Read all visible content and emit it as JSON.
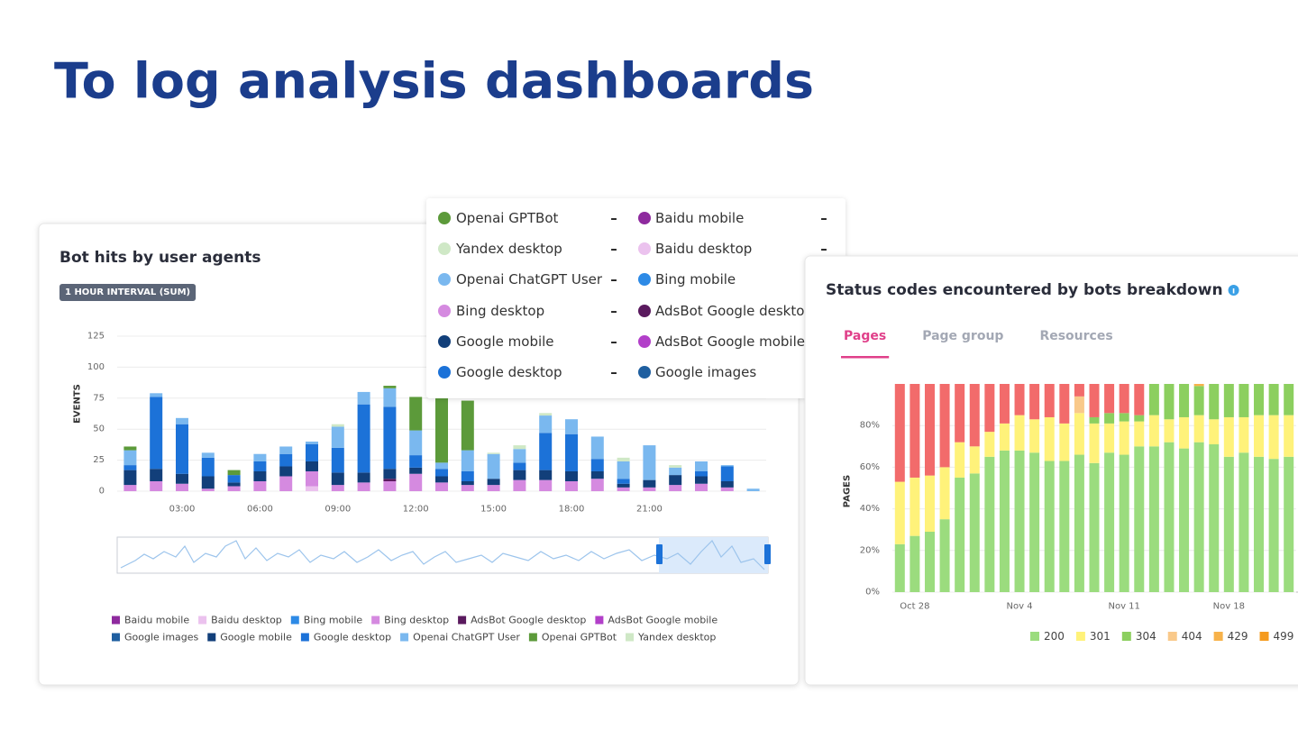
{
  "page_title": "To log analysis dashboards",
  "chart_data": [
    {
      "type": "bar",
      "stacked": true,
      "title": "Bot hits by user agents",
      "badge": "1 HOUR INTERVAL (SUM)",
      "y_label": "EVENTS",
      "categories": [
        null,
        null,
        "03:00",
        null,
        null,
        "06:00",
        null,
        null,
        "09:00",
        null,
        null,
        "12:00",
        null,
        null,
        "15:00",
        null,
        null,
        "18:00",
        null,
        null,
        "21:00",
        null,
        null,
        null,
        null
      ],
      "ylim": [
        0,
        125
      ],
      "yticks": [
        0,
        25,
        50,
        75,
        100,
        125
      ],
      "grid": true,
      "series": [
        {
          "name": "Baidu mobile",
          "color": "#8e2a9e",
          "values": [
            0,
            0,
            0,
            0,
            0,
            0,
            0,
            0,
            0,
            0,
            0,
            0,
            0,
            0,
            0,
            0,
            0,
            0,
            0,
            0,
            0,
            0,
            0,
            0,
            0
          ]
        },
        {
          "name": "Baidu desktop",
          "color": "#ebc2ee",
          "values": [
            0,
            0,
            0,
            0,
            0,
            0,
            0,
            4,
            0,
            0,
            0,
            0,
            0,
            0,
            0,
            0,
            0,
            0,
            0,
            0,
            0,
            0,
            0,
            0,
            0
          ]
        },
        {
          "name": "Bing mobile",
          "color": "#2d8ae6",
          "values": [
            0,
            0,
            0,
            0,
            0,
            0,
            0,
            0,
            0,
            0,
            0,
            0,
            0,
            0,
            0,
            0,
            0,
            0,
            0,
            0,
            0,
            0,
            0,
            0,
            0
          ]
        },
        {
          "name": "Bing desktop",
          "color": "#d58ae0",
          "values": [
            5,
            8,
            6,
            2,
            4,
            8,
            12,
            12,
            5,
            7,
            8,
            14,
            7,
            5,
            5,
            9,
            9,
            8,
            10,
            3,
            3,
            5,
            6,
            3,
            0
          ]
        },
        {
          "name": "AdsBot Google desktop",
          "color": "#5a1a5e",
          "values": [
            0,
            0,
            0,
            0,
            0,
            0,
            0,
            0,
            0,
            0,
            2,
            0,
            0,
            0,
            0,
            0,
            0,
            0,
            0,
            0,
            0,
            0,
            0,
            0,
            0
          ]
        },
        {
          "name": "AdsBot Google mobile",
          "color": "#b23fc9",
          "values": [
            0,
            0,
            0,
            0,
            0,
            0,
            0,
            0,
            0,
            0,
            0,
            0,
            0,
            0,
            0,
            0,
            0,
            0,
            0,
            0,
            0,
            0,
            0,
            0,
            0
          ]
        },
        {
          "name": "Google images",
          "color": "#1f5fa0",
          "values": [
            0,
            0,
            0,
            0,
            0,
            0,
            0,
            0,
            0,
            0,
            0,
            0,
            0,
            0,
            0,
            0,
            0,
            0,
            0,
            0,
            0,
            0,
            0,
            0,
            0
          ]
        },
        {
          "name": "Google mobile",
          "color": "#123f7a",
          "values": [
            12,
            10,
            8,
            10,
            3,
            8,
            8,
            8,
            10,
            8,
            8,
            5,
            5,
            3,
            5,
            8,
            8,
            8,
            6,
            3,
            6,
            8,
            6,
            5,
            0
          ]
        },
        {
          "name": "Google desktop",
          "color": "#1c72d8",
          "values": [
            4,
            58,
            40,
            15,
            6,
            8,
            10,
            14,
            20,
            55,
            50,
            10,
            6,
            8,
            0,
            6,
            30,
            30,
            10,
            4,
            0,
            0,
            4,
            12,
            0
          ]
        },
        {
          "name": "Openai ChatGPT User",
          "color": "#7ab8ef",
          "values": [
            12,
            3,
            5,
            4,
            0,
            6,
            6,
            2,
            17,
            10,
            15,
            20,
            5,
            17,
            20,
            11,
            14,
            12,
            18,
            14,
            28,
            6,
            8,
            1,
            2
          ]
        },
        {
          "name": "Openai GPTBot",
          "color": "#5c9a3a",
          "values": [
            3,
            0,
            0,
            0,
            4,
            0,
            0,
            0,
            0,
            0,
            2,
            27,
            55,
            40,
            0,
            0,
            0,
            0,
            0,
            0,
            0,
            0,
            0,
            0,
            0
          ]
        },
        {
          "name": "Yandex desktop",
          "color": "#cfe8c6",
          "values": [
            0,
            0,
            0,
            0,
            0,
            0,
            0,
            0,
            2,
            0,
            0,
            0,
            0,
            0,
            1,
            3,
            2,
            0,
            0,
            3,
            0,
            2,
            0,
            0,
            0
          ]
        }
      ]
    },
    {
      "type": "bar",
      "stacked": true,
      "title": "Status codes encountered by bots breakdown",
      "tabs": [
        "Pages",
        "Page group",
        "Resources"
      ],
      "active_tab": 0,
      "y_label": "PAGES",
      "categories": [
        null,
        "Oct 28",
        null,
        null,
        null,
        null,
        null,
        null,
        "Nov 4",
        null,
        null,
        null,
        null,
        null,
        null,
        "Nov 11",
        null,
        null,
        null,
        null,
        null,
        null,
        "Nov 18",
        null,
        null,
        null,
        null
      ],
      "ylim": [
        0,
        100
      ],
      "yticks": [
        {
          "value": 0,
          "label": "0%"
        },
        {
          "value": 20,
          "label": "20%"
        },
        {
          "value": 40,
          "label": "40%"
        },
        {
          "value": 60,
          "label": "60%"
        },
        {
          "value": 80,
          "label": "80%"
        }
      ],
      "grid": true,
      "series": [
        {
          "name": "200",
          "color": "#9bdc7e",
          "values": [
            23,
            27,
            29,
            35,
            55,
            57,
            65,
            68,
            68,
            67,
            63,
            63,
            66,
            62,
            67,
            66,
            70,
            70,
            72,
            69,
            72,
            71,
            65,
            67,
            65,
            64,
            65
          ]
        },
        {
          "name": "301",
          "color": "#fff27a",
          "values": [
            30,
            28,
            27,
            25,
            17,
            13,
            12,
            13,
            17,
            16,
            21,
            18,
            20,
            19,
            14,
            16,
            12,
            15,
            11,
            15,
            13,
            12,
            19,
            17,
            20,
            21,
            20
          ]
        },
        {
          "name": "304",
          "color": "#8ccf5f",
          "values": [
            0,
            0,
            0,
            0,
            0,
            0,
            0,
            0,
            0,
            0,
            0,
            0,
            0,
            3,
            5,
            4,
            3,
            15,
            17,
            16,
            14,
            17,
            16,
            16,
            15,
            15,
            15
          ]
        },
        {
          "name": "404",
          "color": "#f9c98a",
          "values": [
            0,
            0,
            0,
            0,
            0,
            0,
            0,
            0,
            0,
            0,
            0,
            0,
            8,
            0,
            0,
            0,
            0,
            0,
            0,
            0,
            0,
            0,
            0,
            0,
            0,
            0,
            0
          ]
        },
        {
          "name": "429",
          "color": "#f7b24a",
          "values": [
            0,
            0,
            0,
            0,
            0,
            0,
            0,
            0,
            0,
            0,
            0,
            0,
            0,
            0,
            0,
            0,
            0,
            0,
            0,
            0,
            1,
            0,
            0,
            0,
            0,
            0,
            0
          ]
        },
        {
          "name": "499",
          "color": "#f59b1f",
          "values": [
            0,
            0,
            0,
            0,
            0,
            0,
            0,
            0,
            0,
            0,
            0,
            0,
            0,
            0,
            0,
            0,
            0,
            0,
            0,
            0,
            0,
            0,
            0,
            0,
            0,
            0,
            0
          ]
        },
        {
          "color": "#f26b6b",
          "values": [
            47,
            45,
            44,
            40,
            28,
            30,
            23,
            19,
            15,
            17,
            16,
            19,
            6,
            16,
            14,
            14,
            15,
            0,
            0,
            0,
            0,
            0,
            0,
            0,
            0,
            0,
            0
          ]
        }
      ]
    }
  ],
  "tooltip": {
    "columns": [
      [
        {
          "name": "Openai GPTBot",
          "color": "#5c9a3a",
          "value": "–"
        },
        {
          "name": "Yandex desktop",
          "color": "#cfe8c6",
          "value": "–"
        },
        {
          "name": "Openai ChatGPT User",
          "color": "#7ab8ef",
          "value": "–"
        },
        {
          "name": "Bing desktop",
          "color": "#d58ae0",
          "value": "–"
        },
        {
          "name": "Google mobile",
          "color": "#123f7a",
          "value": "–"
        },
        {
          "name": "Google desktop",
          "color": "#1c72d8",
          "value": "–"
        }
      ],
      [
        {
          "name": "Baidu mobile",
          "color": "#8e2a9e",
          "value": "–"
        },
        {
          "name": "Baidu desktop",
          "color": "#ebc2ee",
          "value": "–"
        },
        {
          "name": "Bing mobile",
          "color": "#2d8ae6",
          "value": "–"
        },
        {
          "name": "AdsBot Google desktop",
          "color": "#5a1a5e",
          "value": "–"
        },
        {
          "name": "AdsBot Google mobile",
          "color": "#b23fc9",
          "value": "–"
        },
        {
          "name": "Google images",
          "color": "#1f5fa0",
          "value": "–"
        }
      ]
    ]
  }
}
